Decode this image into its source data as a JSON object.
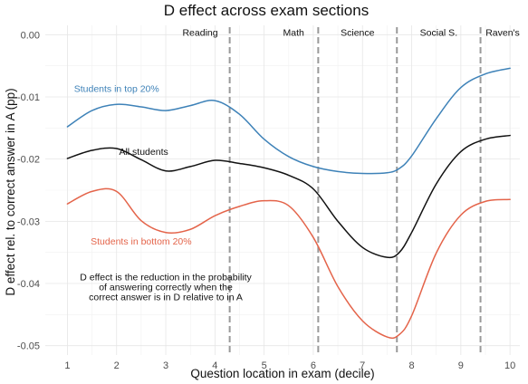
{
  "chart_data": {
    "type": "line",
    "title": "D effect across exam sections",
    "xlabel": "Question location in exam (decile)",
    "ylabel": "D effect rel. to correct answer in A (pp)",
    "xlim": [
      0.55,
      10.2
    ],
    "ylim": [
      -0.0515,
      0.0015
    ],
    "x_ticks": [
      1,
      2,
      3,
      4,
      5,
      6,
      7,
      8,
      9,
      10
    ],
    "x_tick_labels": [
      "1",
      "2",
      "3",
      "4",
      "5",
      "6",
      "7",
      "8",
      "9",
      "10"
    ],
    "y_ticks": [
      0,
      -0.01,
      -0.02,
      -0.03,
      -0.04,
      -0.05
    ],
    "y_tick_labels": [
      "0.00",
      "-0.01",
      "-0.02",
      "-0.03",
      "-0.04",
      "-0.05"
    ],
    "grid": true,
    "section_dividers": [
      4.3,
      6.1,
      7.7,
      9.4
    ],
    "sections": [
      {
        "label": "Reading",
        "x": 3.7
      },
      {
        "label": "Math",
        "x": 5.6
      },
      {
        "label": "Science",
        "x": 6.9
      },
      {
        "label": "Social S.",
        "x": 8.55
      },
      {
        "label": "Raven's",
        "x": 9.85
      }
    ],
    "series": [
      {
        "name": "Students in top 20%",
        "color": "#3e82b8",
        "label_x": 2.0,
        "label_y": -0.0092,
        "x": [
          1.0,
          1.5,
          2.0,
          2.5,
          3.0,
          3.5,
          4.0,
          4.5,
          5.0,
          5.5,
          6.0,
          6.5,
          7.0,
          7.5,
          7.75,
          8.0,
          8.5,
          9.0,
          9.5,
          10.0
        ],
        "y": [
          -0.0148,
          -0.0122,
          -0.0112,
          -0.0116,
          -0.0122,
          -0.0114,
          -0.0106,
          -0.0128,
          -0.0168,
          -0.0196,
          -0.0212,
          -0.022,
          -0.0223,
          -0.0222,
          -0.0215,
          -0.0195,
          -0.0135,
          -0.0085,
          -0.0063,
          -0.0054
        ]
      },
      {
        "name": "All students",
        "color": "#111111",
        "label_x": 2.55,
        "label_y": -0.0193,
        "x": [
          1.0,
          1.5,
          2.0,
          2.5,
          3.0,
          3.5,
          4.0,
          4.5,
          5.0,
          5.5,
          6.0,
          6.5,
          7.0,
          7.5,
          7.75,
          8.0,
          8.5,
          9.0,
          9.5,
          10.0
        ],
        "y": [
          -0.0199,
          -0.0186,
          -0.0183,
          -0.0201,
          -0.0219,
          -0.0212,
          -0.0202,
          -0.0207,
          -0.0214,
          -0.0226,
          -0.0248,
          -0.03,
          -0.0342,
          -0.0358,
          -0.035,
          -0.0318,
          -0.024,
          -0.0188,
          -0.0168,
          -0.0162
        ]
      },
      {
        "name": "Students in bottom 20%",
        "color": "#e4644a",
        "label_x": 2.5,
        "label_y": -0.0337,
        "x": [
          1.0,
          1.5,
          2.0,
          2.5,
          3.0,
          3.5,
          4.0,
          4.5,
          5.0,
          5.5,
          6.0,
          6.5,
          7.0,
          7.5,
          7.75,
          8.0,
          8.5,
          9.0,
          9.5,
          10.0
        ],
        "y": [
          -0.0272,
          -0.0252,
          -0.0252,
          -0.0299,
          -0.0318,
          -0.0313,
          -0.0291,
          -0.0276,
          -0.0267,
          -0.0275,
          -0.0326,
          -0.0405,
          -0.046,
          -0.0486,
          -0.0482,
          -0.0452,
          -0.0351,
          -0.029,
          -0.0268,
          -0.0265
        ]
      }
    ],
    "annotation": {
      "lines": [
        "D effect is the reduction in the probability",
        "of answering correctly when the",
        "correct answer is in D relative to in A"
      ],
      "x": 3.0,
      "y": -0.0395
    }
  }
}
